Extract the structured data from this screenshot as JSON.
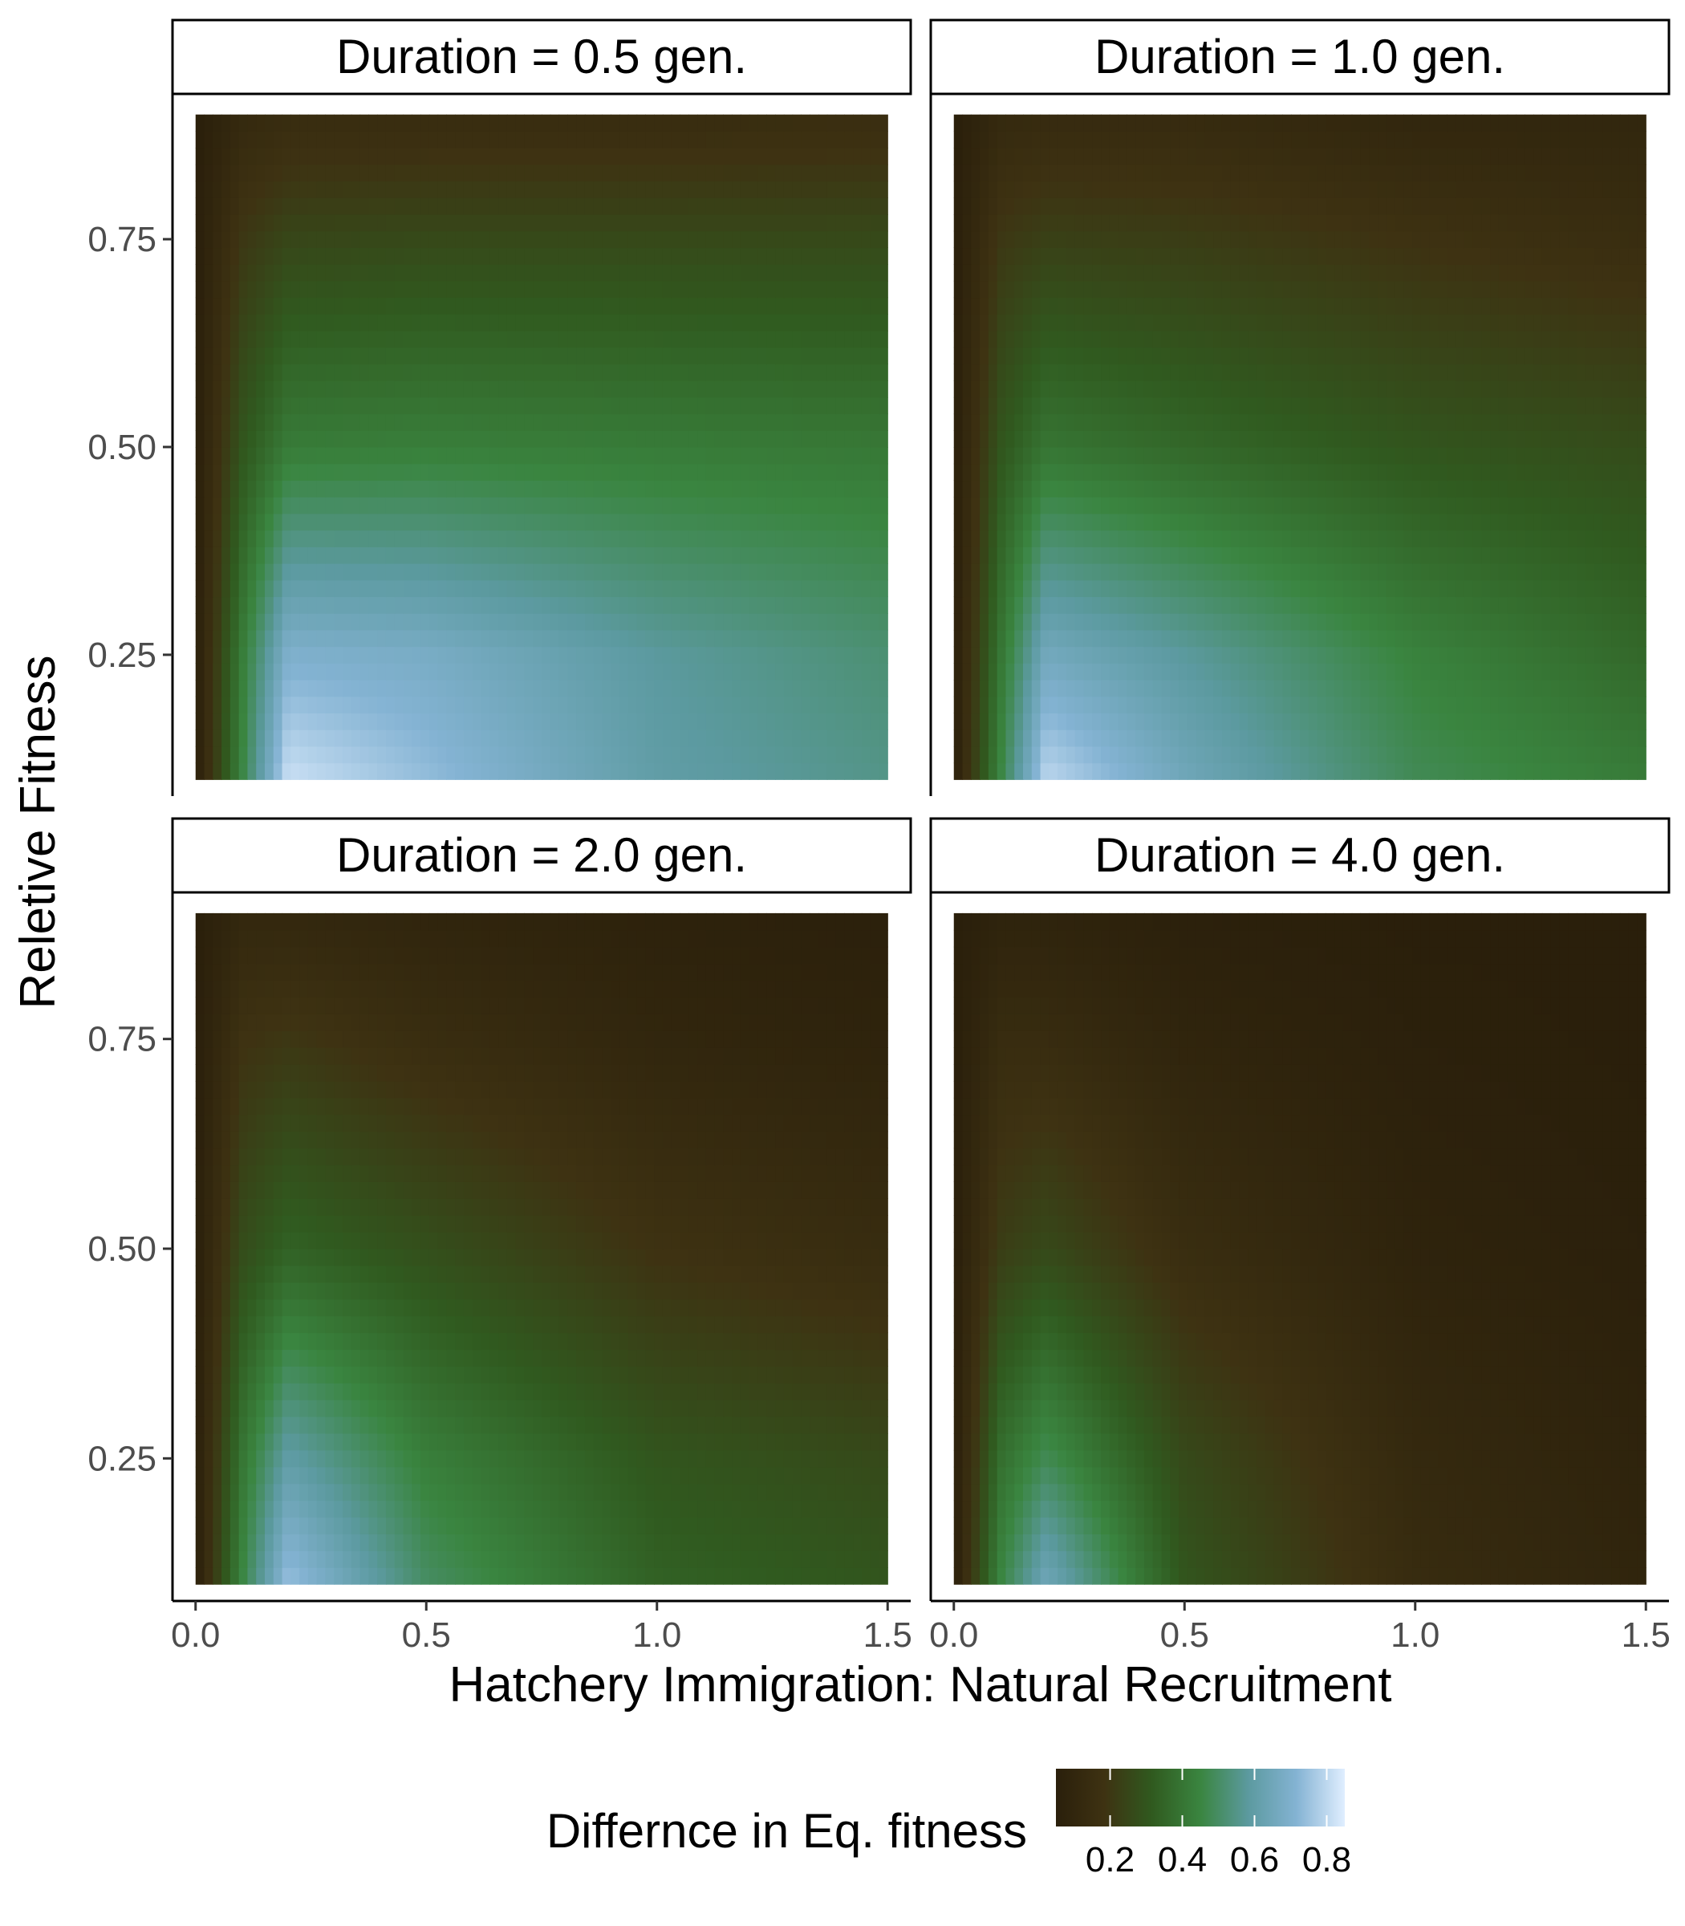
{
  "chart_data": {
    "type": "heatmap",
    "facet_by": "Duration",
    "xlabel": "Hatchery Immigration: Natural Recruitment",
    "ylabel": "Reletive Fitness",
    "xlim": [
      -0.05,
      1.55
    ],
    "ylim": [
      0.08,
      0.92
    ],
    "data_range": {
      "x": [
        0.0,
        1.5
      ],
      "y": [
        0.1,
        0.9
      ]
    },
    "x_ticks": [
      {
        "value": 0.0,
        "label": "0.0"
      },
      {
        "value": 0.5,
        "label": "0.5"
      },
      {
        "value": 1.0,
        "label": "1.0"
      },
      {
        "value": 1.5,
        "label": "1.5"
      }
    ],
    "y_ticks": [
      {
        "value": 0.25,
        "label": "0.25"
      },
      {
        "value": 0.5,
        "label": "0.50"
      },
      {
        "value": 0.75,
        "label": "0.75"
      }
    ],
    "legend": {
      "title": "Differnce in Eq. fitness",
      "position": "bottom",
      "min": 0.05,
      "max": 0.85,
      "ticks": [
        {
          "value": 0.2,
          "label": "0.2"
        },
        {
          "value": 0.4,
          "label": "0.4"
        },
        {
          "value": 0.6,
          "label": "0.6"
        },
        {
          "value": 0.8,
          "label": "0.8"
        }
      ],
      "color_stops": [
        "#2a1f0b",
        "#3e3212",
        "#305a1f",
        "#3a8540",
        "#5c9aa0",
        "#84b3d3",
        "#e0eeff"
      ]
    },
    "grid_x": [
      0.0,
      0.1,
      0.2,
      0.5,
      1.0,
      1.5
    ],
    "grid_y": [
      0.1,
      0.25,
      0.5,
      0.75,
      0.9
    ],
    "panels": [
      {
        "label": "Duration = 0.5 gen.",
        "duration": 0.5,
        "values": [
          [
            0.05,
            0.45,
            0.82,
            0.74,
            0.6,
            0.55
          ],
          [
            0.05,
            0.42,
            0.7,
            0.68,
            0.58,
            0.52
          ],
          [
            0.05,
            0.3,
            0.42,
            0.43,
            0.42,
            0.41
          ],
          [
            0.05,
            0.2,
            0.25,
            0.26,
            0.26,
            0.26
          ],
          [
            0.05,
            0.12,
            0.14,
            0.14,
            0.14,
            0.15
          ]
        ]
      },
      {
        "label": "Duration = 1.0 gen.",
        "duration": 1.0,
        "values": [
          [
            0.05,
            0.45,
            0.8,
            0.65,
            0.48,
            0.42
          ],
          [
            0.05,
            0.4,
            0.66,
            0.58,
            0.44,
            0.36
          ],
          [
            0.05,
            0.3,
            0.4,
            0.36,
            0.3,
            0.27
          ],
          [
            0.05,
            0.2,
            0.23,
            0.22,
            0.18,
            0.15
          ],
          [
            0.05,
            0.12,
            0.13,
            0.13,
            0.1,
            0.1
          ]
        ]
      },
      {
        "label": "Duration = 2.0 gen.",
        "duration": 2.0,
        "values": [
          [
            0.05,
            0.45,
            0.75,
            0.5,
            0.34,
            0.3
          ],
          [
            0.05,
            0.4,
            0.6,
            0.43,
            0.3,
            0.26
          ],
          [
            0.05,
            0.27,
            0.34,
            0.28,
            0.18,
            0.14
          ],
          [
            0.05,
            0.18,
            0.2,
            0.15,
            0.1,
            0.08
          ],
          [
            0.05,
            0.11,
            0.11,
            0.09,
            0.07,
            0.06
          ]
        ]
      },
      {
        "label": "Duration = 4.0 gen.",
        "duration": 4.0,
        "values": [
          [
            0.05,
            0.45,
            0.65,
            0.3,
            0.14,
            0.09
          ],
          [
            0.05,
            0.38,
            0.48,
            0.26,
            0.12,
            0.08
          ],
          [
            0.05,
            0.22,
            0.26,
            0.15,
            0.08,
            0.06
          ],
          [
            0.05,
            0.14,
            0.14,
            0.09,
            0.06,
            0.05
          ],
          [
            0.05,
            0.08,
            0.08,
            0.06,
            0.05,
            0.05
          ]
        ]
      }
    ]
  }
}
